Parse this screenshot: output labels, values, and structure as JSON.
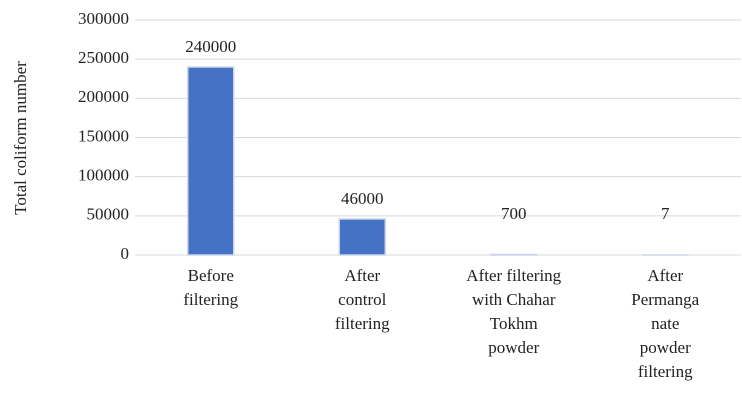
{
  "chart_data": {
    "type": "bar",
    "y_label": "Total coliform number",
    "categories": [
      [
        "Before",
        "filtering"
      ],
      [
        "After",
        "control",
        "filtering"
      ],
      [
        "After filtering",
        "with Chahar",
        "Tokhm",
        "powder"
      ],
      [
        "After",
        "Permanga",
        "nate",
        "powder",
        "filtering"
      ]
    ],
    "values": [
      240000,
      46000,
      700,
      7
    ],
    "color": "#4472c4",
    "ylim": [
      0,
      300000
    ],
    "yticks": [
      0,
      50000,
      100000,
      150000,
      200000,
      250000,
      300000
    ],
    "grid": true
  }
}
